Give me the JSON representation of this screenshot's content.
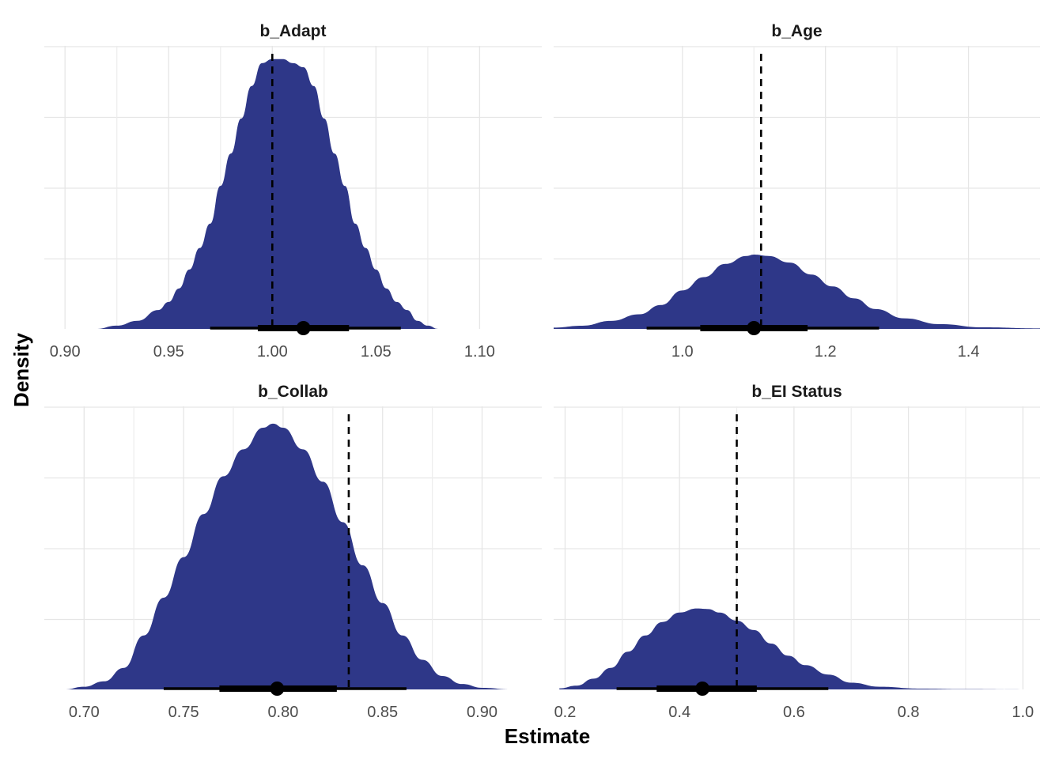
{
  "chart_data": {
    "type": "area",
    "xlabel": "Estimate",
    "ylabel": "Density",
    "grid": true,
    "colors": {
      "density_fill": "#2e3788",
      "interval": "#000000",
      "reference_line": "#000000"
    },
    "panels": [
      {
        "title": "b_Adapt",
        "xlim": [
          0.89,
          1.13
        ],
        "xticks": [
          0.9,
          0.95,
          1.0,
          1.05,
          1.1
        ],
        "xtick_labels": [
          "0.90",
          "0.95",
          "1.00",
          "1.05",
          "1.10"
        ],
        "reference_line": 1.0,
        "point_estimate": 1.015,
        "interval_inner": [
          0.993,
          1.037
        ],
        "interval_outer": [
          0.97,
          1.062
        ],
        "density_scale": 0.305,
        "density": {
          "x": [
            0.915,
            0.925,
            0.935,
            0.945,
            0.95,
            0.955,
            0.96,
            0.965,
            0.97,
            0.975,
            0.98,
            0.985,
            0.99,
            0.995,
            1.0,
            1.005,
            1.01,
            1.015,
            1.02,
            1.025,
            1.03,
            1.035,
            1.04,
            1.045,
            1.05,
            1.055,
            1.06,
            1.065,
            1.07,
            1.075,
            1.08,
            1.09,
            1.1,
            1.11,
            1.12
          ],
          "y": [
            0.0,
            0.012,
            0.03,
            0.07,
            0.1,
            0.15,
            0.22,
            0.3,
            0.39,
            0.53,
            0.65,
            0.78,
            0.9,
            0.985,
            1.0,
            1.0,
            0.985,
            0.97,
            0.9,
            0.78,
            0.65,
            0.53,
            0.39,
            0.3,
            0.22,
            0.15,
            0.1,
            0.07,
            0.03,
            0.012,
            0.0,
            0.0,
            0.0,
            0.0,
            0.0
          ]
        }
      },
      {
        "title": "b_Age",
        "xlim": [
          0.82,
          1.5
        ],
        "xticks": [
          1.0,
          1.2,
          1.4
        ],
        "xtick_labels": [
          "1.0",
          "1.2",
          "1.4"
        ],
        "reference_line": 1.11,
        "point_estimate": 1.1,
        "interval_inner": [
          1.025,
          1.175
        ],
        "interval_outer": [
          0.95,
          1.275
        ],
        "density_scale": 0.3,
        "density": {
          "x": [
            0.82,
            0.86,
            0.9,
            0.94,
            0.97,
            1.0,
            1.03,
            1.06,
            1.09,
            1.1,
            1.12,
            1.15,
            1.18,
            1.21,
            1.24,
            1.27,
            1.31,
            1.36,
            1.42,
            1.5
          ],
          "y": [
            0.005,
            0.012,
            0.03,
            0.055,
            0.09,
            0.145,
            0.195,
            0.245,
            0.275,
            0.28,
            0.275,
            0.25,
            0.205,
            0.16,
            0.115,
            0.075,
            0.04,
            0.018,
            0.006,
            0.002
          ]
        }
      },
      {
        "title": "b_Collab",
        "xlim": [
          0.68,
          0.93
        ],
        "xticks": [
          0.7,
          0.75,
          0.8,
          0.85,
          0.9
        ],
        "xtick_labels": [
          "0.70",
          "0.75",
          "0.80",
          "0.85",
          "0.90"
        ],
        "reference_line": 0.833,
        "point_estimate": 0.797,
        "interval_inner": [
          0.768,
          0.827
        ],
        "interval_outer": [
          0.74,
          0.862
        ],
        "density_scale": 0.305,
        "density": {
          "x": [
            0.69,
            0.7,
            0.71,
            0.72,
            0.73,
            0.74,
            0.75,
            0.76,
            0.77,
            0.78,
            0.79,
            0.795,
            0.8,
            0.81,
            0.82,
            0.83,
            0.84,
            0.85,
            0.86,
            0.87,
            0.88,
            0.89,
            0.9,
            0.915
          ],
          "y": [
            0.0,
            0.01,
            0.03,
            0.08,
            0.2,
            0.34,
            0.49,
            0.65,
            0.79,
            0.89,
            0.97,
            0.985,
            0.97,
            0.89,
            0.77,
            0.62,
            0.46,
            0.32,
            0.2,
            0.11,
            0.05,
            0.02,
            0.006,
            0.0
          ]
        }
      },
      {
        "title": "b_EI Status",
        "xlim": [
          0.18,
          1.03
        ],
        "xticks": [
          0.2,
          0.4,
          0.6,
          0.8,
          1.0
        ],
        "xtick_labels": [
          "0.2",
          "0.4",
          "0.6",
          "0.8",
          "1.0"
        ],
        "reference_line": 0.5,
        "point_estimate": 0.44,
        "interval_inner": [
          0.36,
          0.535
        ],
        "interval_outer": [
          0.29,
          0.66
        ],
        "density_scale": 0.305,
        "density": {
          "x": [
            0.19,
            0.22,
            0.25,
            0.28,
            0.31,
            0.34,
            0.37,
            0.4,
            0.43,
            0.45,
            0.47,
            0.5,
            0.53,
            0.56,
            0.59,
            0.62,
            0.66,
            0.7,
            0.75,
            0.82,
            0.9,
            1.0
          ],
          "y": [
            0.004,
            0.014,
            0.04,
            0.08,
            0.14,
            0.2,
            0.25,
            0.285,
            0.3,
            0.298,
            0.285,
            0.255,
            0.22,
            0.17,
            0.125,
            0.09,
            0.055,
            0.025,
            0.01,
            0.003,
            0.001,
            0.0
          ]
        }
      }
    ]
  }
}
